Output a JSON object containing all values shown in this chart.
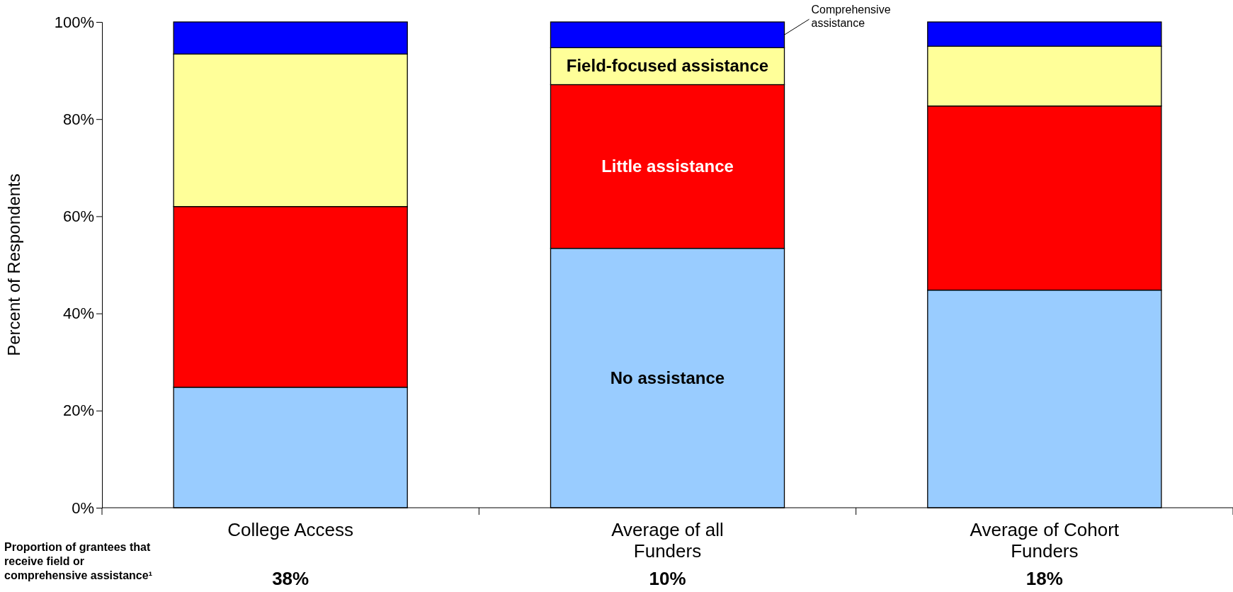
{
  "chart_data": {
    "type": "bar",
    "stacked": true,
    "ylabel": "Percent of Respondents",
    "categories": [
      "College Access",
      "Average of all Funders",
      "Average of Cohort Funders"
    ],
    "series": [
      {
        "name": "No assistance",
        "color": "#99ccff",
        "values": [
          24.8,
          53.4,
          44.8
        ]
      },
      {
        "name": "Little assistance",
        "color": "#ff0000",
        "values": [
          37.2,
          33.7,
          37.9
        ]
      },
      {
        "name": "Field-focused assistance",
        "color": "#ffff99",
        "values": [
          31.4,
          7.6,
          12.3
        ]
      },
      {
        "name": "Comprehensive assistance",
        "color": "#0000ff",
        "values": [
          6.6,
          5.3,
          5.0
        ]
      }
    ],
    "ylim": [
      0,
      100
    ],
    "yticks": [
      {
        "value": 0,
        "label": "0%"
      },
      {
        "value": 20,
        "label": "20%"
      },
      {
        "value": 40,
        "label": "40%"
      },
      {
        "value": 60,
        "label": "60%"
      },
      {
        "value": 80,
        "label": "80%"
      },
      {
        "value": 100,
        "label": "100%"
      }
    ],
    "annotations": [
      "Proportion of grantees that receive field or comprehensive assistance¹",
      "38%",
      "10%",
      "18%"
    ]
  }
}
